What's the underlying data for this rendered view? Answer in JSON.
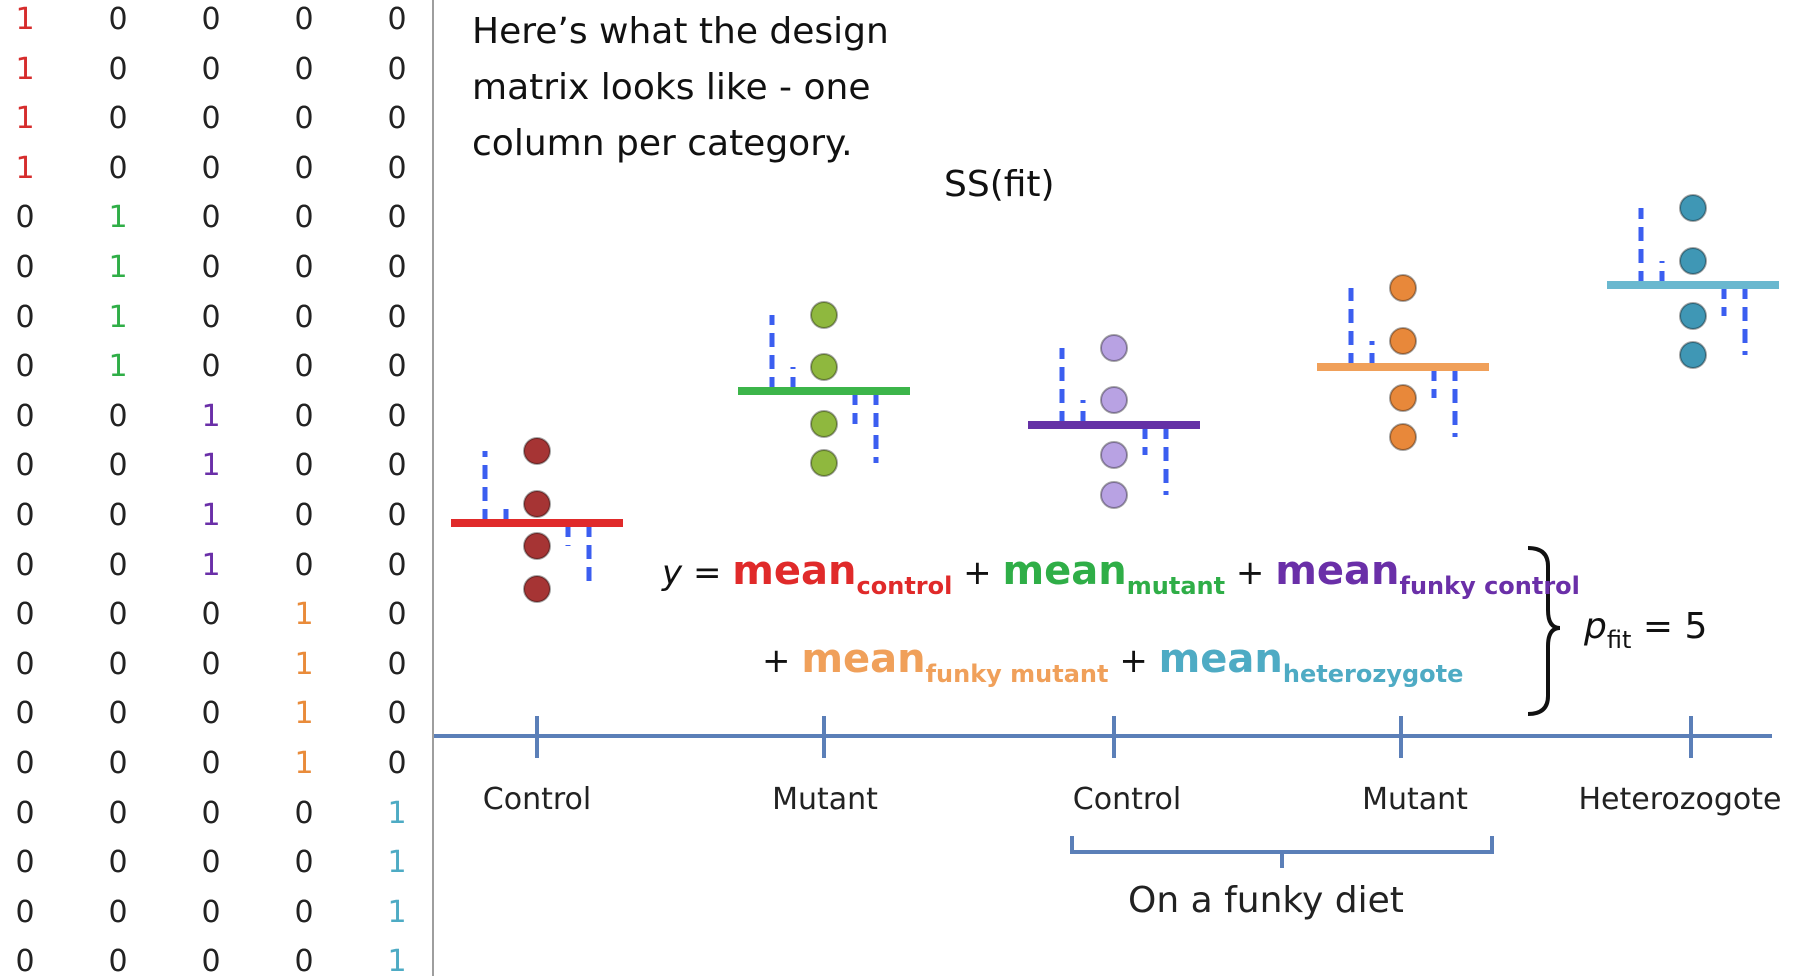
{
  "caption": "Here’s what the design matrix looks like - one column per category.",
  "ss_fit_label": "SS(fit)",
  "design_matrix": {
    "rows": [
      [
        1,
        0,
        0,
        0,
        0
      ],
      [
        1,
        0,
        0,
        0,
        0
      ],
      [
        1,
        0,
        0,
        0,
        0
      ],
      [
        1,
        0,
        0,
        0,
        0
      ],
      [
        0,
        1,
        0,
        0,
        0
      ],
      [
        0,
        1,
        0,
        0,
        0
      ],
      [
        0,
        1,
        0,
        0,
        0
      ],
      [
        0,
        1,
        0,
        0,
        0
      ],
      [
        0,
        0,
        1,
        0,
        0
      ],
      [
        0,
        0,
        1,
        0,
        0
      ],
      [
        0,
        0,
        1,
        0,
        0
      ],
      [
        0,
        0,
        1,
        0,
        0
      ],
      [
        0,
        0,
        0,
        1,
        0
      ],
      [
        0,
        0,
        0,
        1,
        0
      ],
      [
        0,
        0,
        0,
        1,
        0
      ],
      [
        0,
        0,
        0,
        1,
        0
      ],
      [
        0,
        0,
        0,
        0,
        1
      ],
      [
        0,
        0,
        0,
        0,
        1
      ],
      [
        0,
        0,
        0,
        0,
        1
      ],
      [
        0,
        0,
        0,
        0,
        1
      ]
    ],
    "column_colors": [
      "#d62d2d",
      "#2fae47",
      "#6a2fa8",
      "#e98b3a",
      "#4eabc4"
    ],
    "zero_color": "#222222"
  },
  "groups": [
    {
      "label": "Control",
      "color": "#e02a2a",
      "point_color": "#a63434"
    },
    {
      "label": "Mutant",
      "color": "#3cb54a",
      "point_color": "#8fb83e"
    },
    {
      "label": "Control",
      "color": "#6531a6",
      "point_color": "#b8a2e3"
    },
    {
      "label": "Mutant",
      "color": "#f0a05a",
      "point_color": "#e8883a"
    },
    {
      "label": "Heterozogote",
      "color": "#6ab8cf",
      "point_color": "#3f97b5"
    }
  ],
  "diet_label": "On a funky diet",
  "equation": {
    "y": "y",
    "equals": "=",
    "plus": "+",
    "terms": [
      {
        "word": "mean",
        "sub": "control",
        "color": "#e02a2a"
      },
      {
        "word": "mean",
        "sub": "mutant",
        "color": "#2fae47"
      },
      {
        "word": "mean",
        "sub": "funky control",
        "color": "#6a2fa8"
      },
      {
        "word": "mean",
        "sub": "funky mutant",
        "color": "#f0a05a"
      },
      {
        "word": "mean",
        "sub": "heterozygote",
        "color": "#4eabc4"
      }
    ]
  },
  "p_fit": {
    "p": "p",
    "sub": "fit",
    "rest": " = 5"
  },
  "colors": {
    "axis": "#5b7fb8",
    "residual": "#3b5ef0",
    "bracket": "#111111"
  }
}
